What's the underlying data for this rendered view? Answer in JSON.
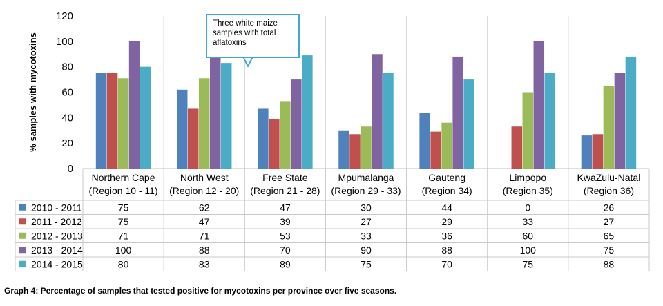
{
  "chart_data": {
    "type": "bar",
    "ylabel": "% samples with mycotoxins",
    "ylim": [
      0,
      120
    ],
    "yticks": [
      0,
      20,
      40,
      60,
      80,
      100,
      120
    ],
    "grid": "vertical separators between categories",
    "legend": "table rows below chart",
    "categories": [
      {
        "line1": "Northern Cape",
        "line2": "(Region 10 - 11)"
      },
      {
        "line1": "North West",
        "line2": "(Region 12 - 20)"
      },
      {
        "line1": "Free State",
        "line2": "(Region 21 - 28)"
      },
      {
        "line1": "Mpumalanga",
        "line2": "(Region 29 - 33)"
      },
      {
        "line1": "Gauteng",
        "line2": "(Region 34)"
      },
      {
        "line1": "Limpopo",
        "line2": "(Region 35)"
      },
      {
        "line1": "KwaZulu-Natal",
        "line2": "(Region 36)"
      }
    ],
    "series": [
      {
        "name": "2010 - 2011",
        "color": "#4f81bd",
        "values": [
          75,
          62,
          47,
          30,
          44,
          0,
          26
        ]
      },
      {
        "name": "2011 - 2012",
        "color": "#c0504d",
        "values": [
          75,
          47,
          39,
          27,
          29,
          33,
          27
        ]
      },
      {
        "name": "2012 - 2013",
        "color": "#9bbb59",
        "values": [
          71,
          71,
          53,
          33,
          36,
          60,
          65
        ]
      },
      {
        "name": "2013 - 2014",
        "color": "#8064a2",
        "values": [
          100,
          88,
          70,
          90,
          88,
          100,
          75
        ]
      },
      {
        "name": "2014 - 2015",
        "color": "#4bacc6",
        "values": [
          80,
          83,
          89,
          75,
          70,
          75,
          88
        ]
      }
    ]
  },
  "annotation": "Three white maize samples with  total aflatoxins",
  "caption": "Graph 4: Percentage of samples that tested positive for mycotoxins per province over five seasons."
}
